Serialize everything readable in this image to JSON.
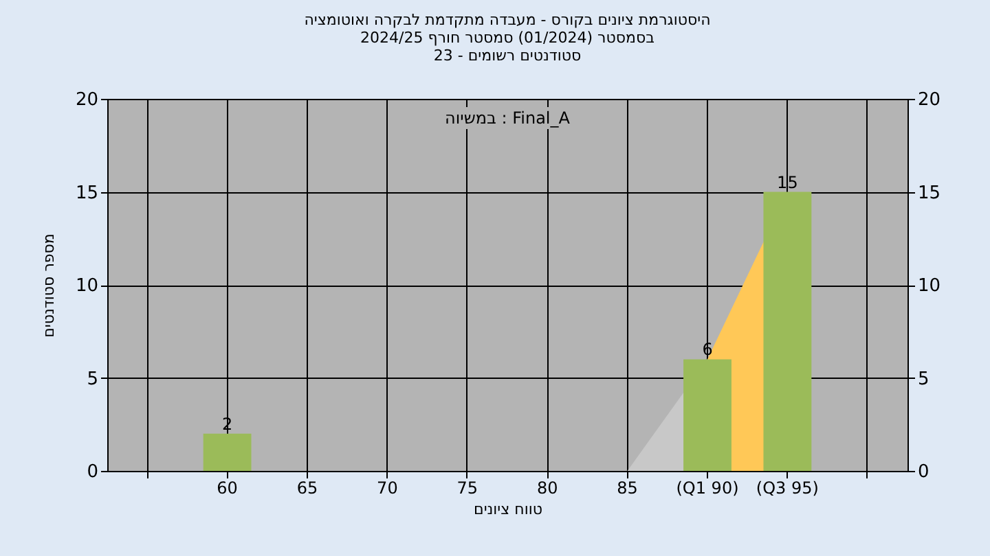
{
  "chart_data": {
    "type": "bar",
    "title": [
      "היסטוגרמת ציונים בקורס - מעבדה מתקדמת לבקרה ואוטומציה",
      "בסמסטר  (01/2024)  סמסטר חורף 2024/25",
      "סטודנטים רשומים - 23"
    ],
    "xlabel": "טווח ציונים",
    "ylabel": "מספר סטודנטים",
    "annotations": [
      "במשיוה : Final_A"
    ],
    "categories": [
      null,
      "60",
      "65",
      "70",
      "75",
      "80",
      "85",
      "(Q1 90)",
      "(Q3 95)",
      null
    ],
    "series": [
      {
        "type": "area",
        "color": "#c8c8c8",
        "values": [
          null,
          null,
          null,
          null,
          null,
          null,
          0,
          6,
          null,
          null
        ]
      },
      {
        "type": "area",
        "color": "#ffc857",
        "values": [
          null,
          null,
          null,
          null,
          null,
          null,
          null,
          6,
          15,
          null
        ]
      },
      {
        "color": "#9bbb59",
        "values": [
          null,
          2,
          0,
          0,
          0,
          0,
          0,
          6,
          15,
          null
        ],
        "value_labels": [
          null,
          "2",
          null,
          null,
          null,
          null,
          null,
          "6",
          "15",
          null
        ]
      }
    ],
    "ylim": [
      0,
      20
    ],
    "yticks": [
      0,
      5,
      10,
      15,
      20
    ],
    "y2lim": [
      0,
      20
    ],
    "y2ticks": [
      0,
      5,
      10,
      15,
      20
    ],
    "grid": true
  }
}
